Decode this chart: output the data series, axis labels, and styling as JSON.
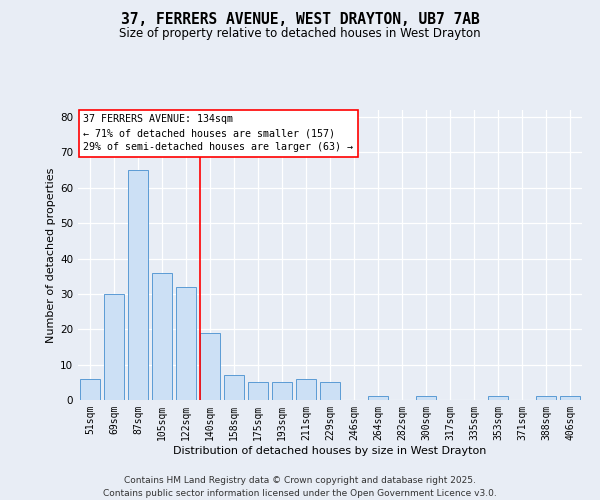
{
  "title_line1": "37, FERRERS AVENUE, WEST DRAYTON, UB7 7AB",
  "title_line2": "Size of property relative to detached houses in West Drayton",
  "xlabel": "Distribution of detached houses by size in West Drayton",
  "ylabel": "Number of detached properties",
  "categories": [
    "51sqm",
    "69sqm",
    "87sqm",
    "105sqm",
    "122sqm",
    "140sqm",
    "158sqm",
    "175sqm",
    "193sqm",
    "211sqm",
    "229sqm",
    "246sqm",
    "264sqm",
    "282sqm",
    "300sqm",
    "317sqm",
    "335sqm",
    "353sqm",
    "371sqm",
    "388sqm",
    "406sqm"
  ],
  "values": [
    6,
    30,
    65,
    36,
    32,
    19,
    7,
    5,
    5,
    6,
    5,
    0,
    1,
    0,
    1,
    0,
    0,
    1,
    0,
    1,
    1
  ],
  "bar_color": "#cce0f5",
  "bar_edge_color": "#5b9bd5",
  "red_line_x": 5.0,
  "annotation_line1": "37 FERRERS AVENUE: 134sqm",
  "annotation_line2": "← 71% of detached houses are smaller (157)",
  "annotation_line3": "29% of semi-detached houses are larger (63) →",
  "ylim_max": 82,
  "yticks": [
    0,
    10,
    20,
    30,
    40,
    50,
    60,
    70,
    80
  ],
  "background_color": "#e8edf5",
  "footer_line1": "Contains HM Land Registry data © Crown copyright and database right 2025.",
  "footer_line2": "Contains public sector information licensed under the Open Government Licence v3.0."
}
